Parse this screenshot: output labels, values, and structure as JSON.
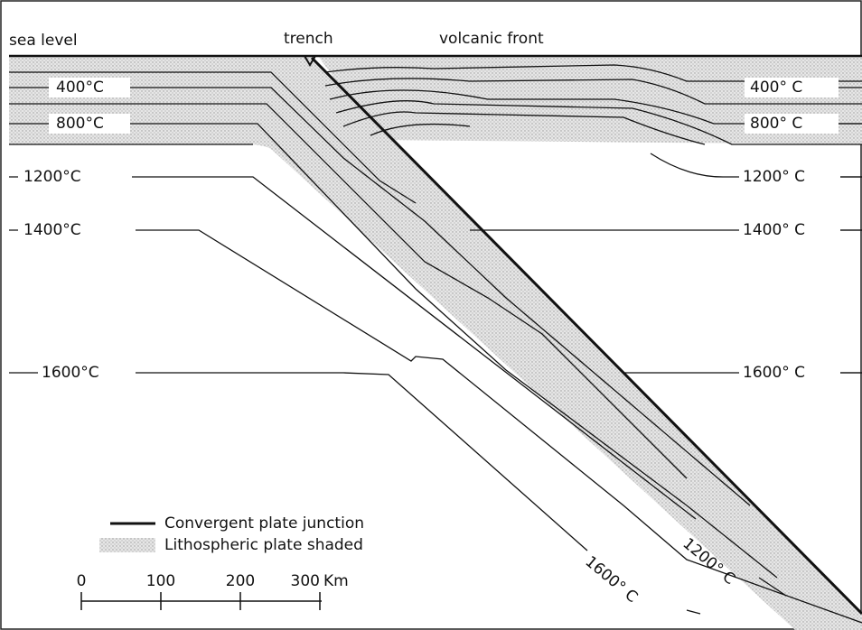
{
  "labels": {
    "sea_level": "sea level",
    "trench": "trench",
    "volcanic_front": "volcanic front"
  },
  "isotherms_left": [
    "400°C",
    "800°C",
    "1200°C",
    "1400°C",
    "1600°C"
  ],
  "isotherms_right": [
    "400° C",
    "800° C",
    "1200° C",
    "1400° C",
    "1600° C"
  ],
  "isotherms_slab": [
    "1600° C",
    "1200° C"
  ],
  "legend": [
    "Convergent plate junction",
    "Lithospheric plate shaded"
  ],
  "scale": {
    "ticks": [
      "0",
      "100",
      "200",
      "300"
    ],
    "unit": "Km"
  }
}
